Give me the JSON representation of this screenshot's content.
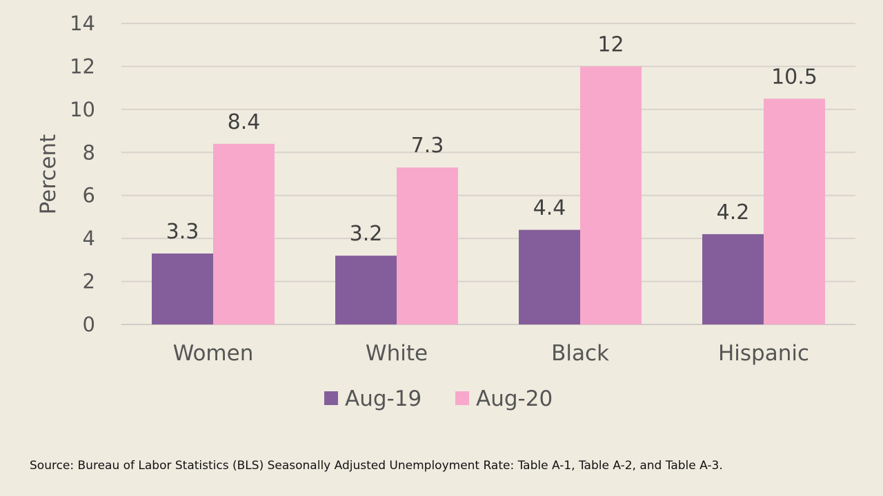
{
  "chart_data": {
    "type": "bar",
    "categories": [
      "Women",
      "White",
      "Black",
      "Hispanic"
    ],
    "series": [
      {
        "name": "Aug-19",
        "values": [
          3.3,
          3.2,
          4.4,
          4.2
        ],
        "color": "#845e9a"
      },
      {
        "name": "Aug-20",
        "values": [
          8.4,
          7.3,
          12,
          10.5
        ],
        "color": "#f7a8cb"
      }
    ],
    "data_labels": [
      [
        "3.3",
        "3.2",
        "4.4",
        "4.2"
      ],
      [
        "8.4",
        "7.3",
        "12",
        "10.5"
      ]
    ],
    "title": "",
    "xlabel": "",
    "ylabel": "Percent",
    "ylim": [
      0,
      14
    ],
    "yticks": [
      0,
      2,
      4,
      6,
      8,
      10,
      12,
      14
    ],
    "grid": true,
    "legend_position": "bottom"
  },
  "source": "Source: Bureau of Labor Statistics (BLS) Seasonally Adjusted Unemployment Rate: Table A-1, Table A-2, and Table A-3."
}
